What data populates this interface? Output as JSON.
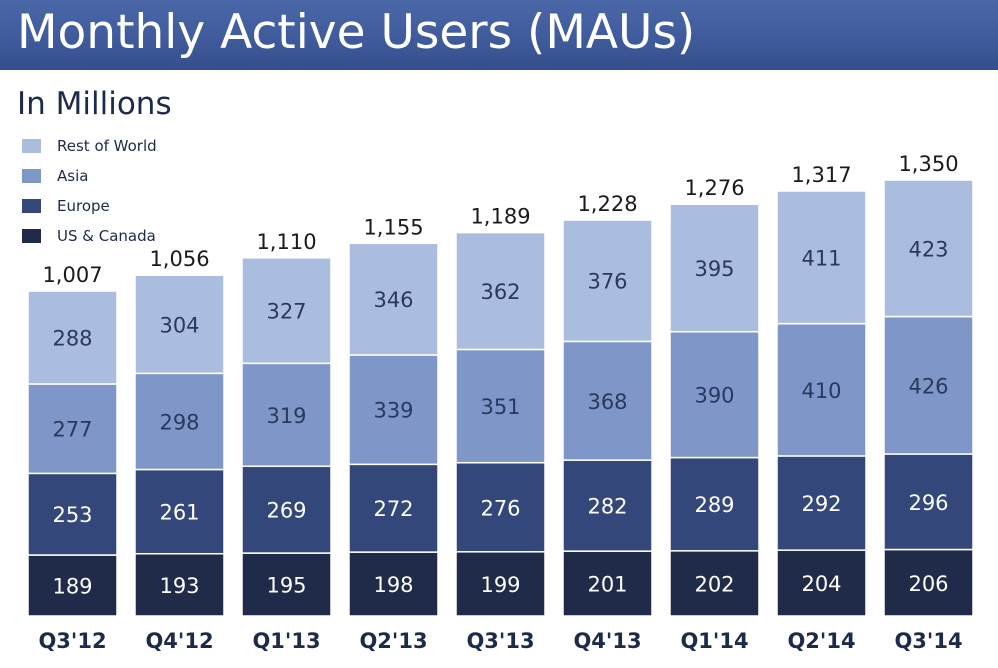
{
  "header": {
    "title": "Monthly Active Users (MAUs)",
    "subtitle": "In Millions"
  },
  "chart_data": {
    "type": "bar",
    "stacked": true,
    "categories": [
      "Q3'12",
      "Q4'12",
      "Q1'13",
      "Q2'13",
      "Q3'13",
      "Q4'13",
      "Q1'14",
      "Q2'14",
      "Q3'14"
    ],
    "series": [
      {
        "name": "US & Canada",
        "color": "#1f2b48",
        "values": [
          189,
          193,
          195,
          198,
          199,
          201,
          202,
          204,
          206
        ]
      },
      {
        "name": "Europe",
        "color": "#34477a",
        "values": [
          253,
          261,
          269,
          272,
          276,
          282,
          289,
          292,
          296
        ]
      },
      {
        "name": "Asia",
        "color": "#7f97c8",
        "values": [
          277,
          298,
          319,
          339,
          351,
          368,
          390,
          410,
          426
        ]
      },
      {
        "name": "Rest of World",
        "color": "#abbddf",
        "values": [
          288,
          304,
          327,
          346,
          362,
          376,
          395,
          411,
          423
        ]
      }
    ],
    "totals": [
      "1,007",
      "1,056",
      "1,110",
      "1,155",
      "1,189",
      "1,228",
      "1,276",
      "1,317",
      "1,350"
    ],
    "legend_position": "top-left",
    "grid": false
  }
}
